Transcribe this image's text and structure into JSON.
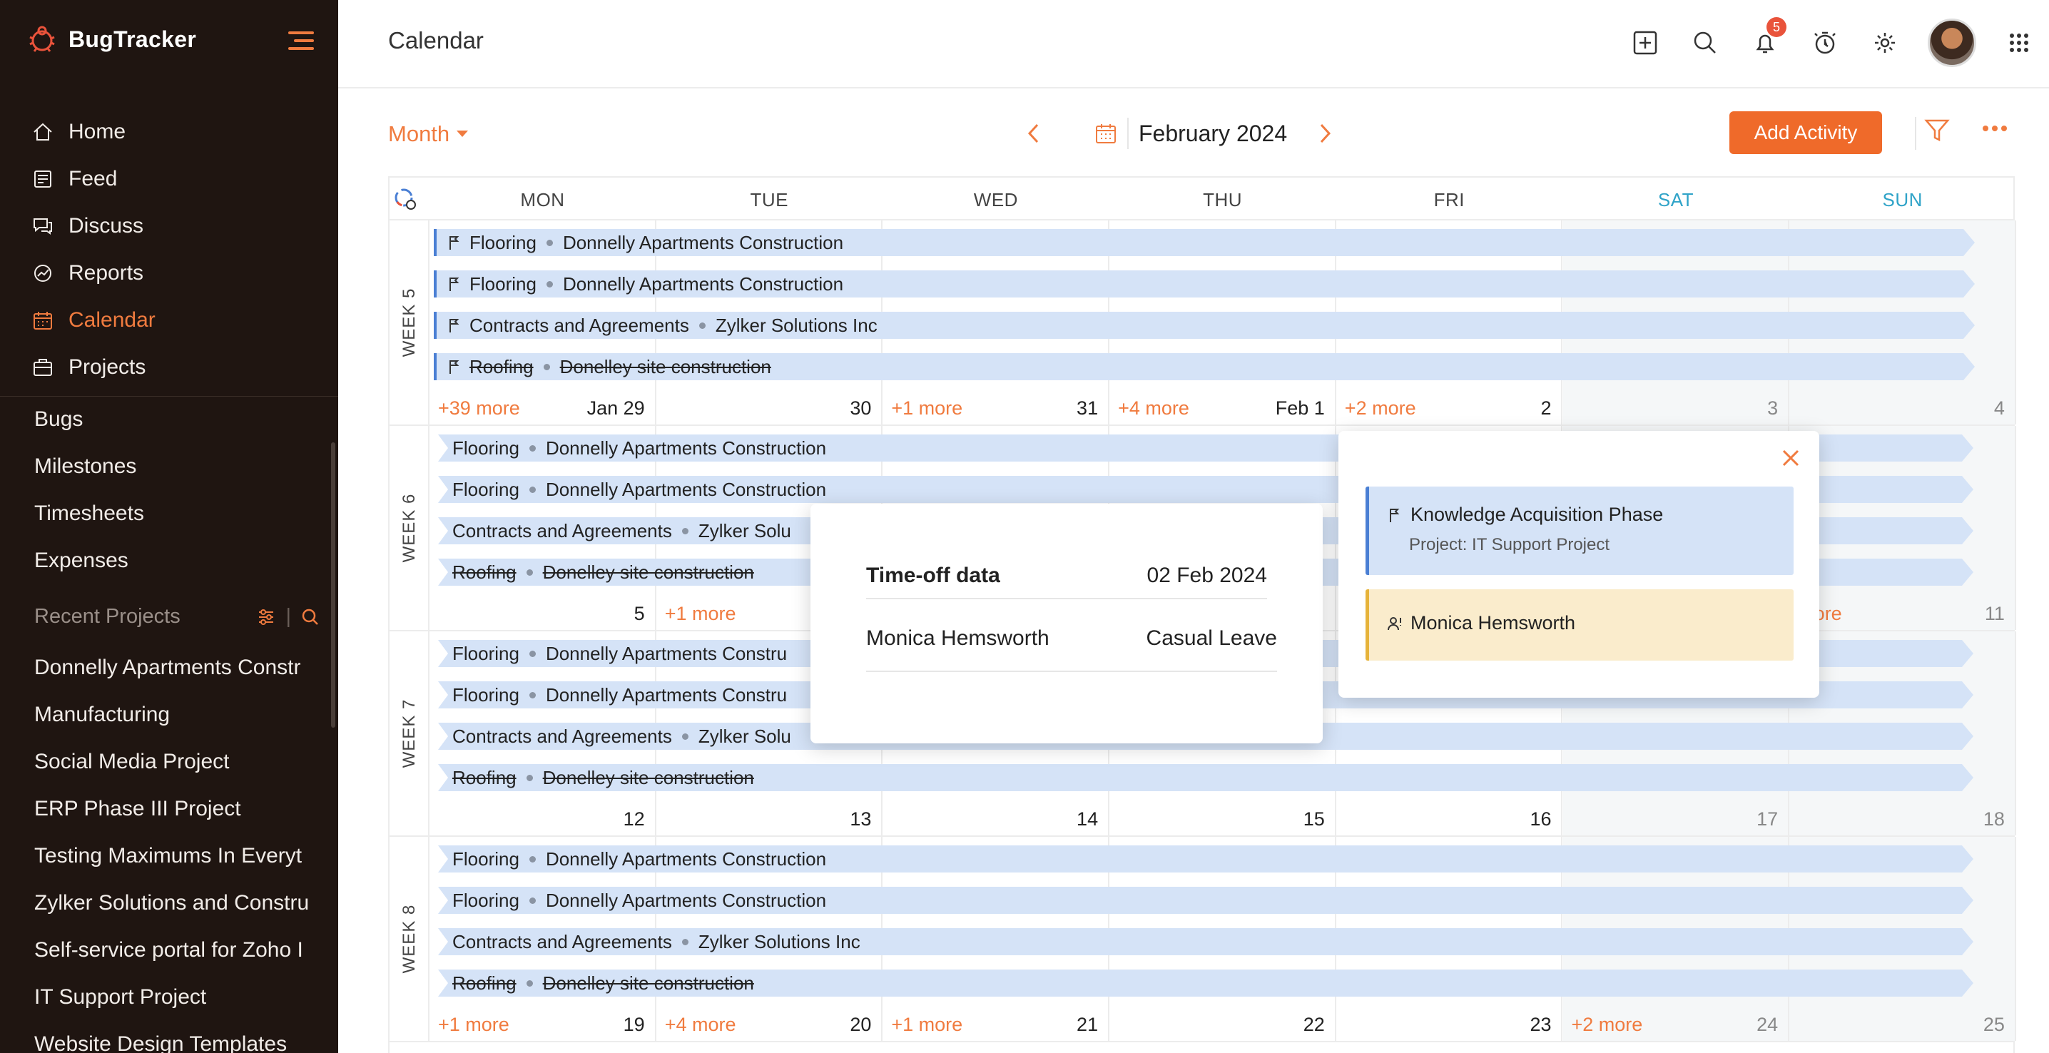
{
  "app": {
    "name": "BugTracker"
  },
  "sidebar": {
    "nav": [
      {
        "label": "Home",
        "icon": "home-icon"
      },
      {
        "label": "Feed",
        "icon": "feed-icon"
      },
      {
        "label": "Discuss",
        "icon": "discuss-icon"
      },
      {
        "label": "Reports",
        "icon": "reports-icon"
      },
      {
        "label": "Calendar",
        "icon": "calendar-icon",
        "active": true
      },
      {
        "label": "Projects",
        "icon": "projects-icon"
      }
    ],
    "sub_nav": [
      "Bugs",
      "Milestones",
      "Timesheets",
      "Expenses"
    ],
    "recent_title": "Recent Projects",
    "recent_projects": [
      "Donnelly Apartments Constr",
      "Manufacturing",
      "Social Media Project",
      "ERP Phase III Project",
      "Testing Maximums In Everyt",
      "Zylker Solutions and Constru",
      "Self-service portal for Zoho I",
      "IT Support Project",
      "Website Design Templates"
    ]
  },
  "header": {
    "title": "Calendar",
    "notification_count": "5"
  },
  "toolbar": {
    "view": "Month",
    "month_label": "February 2024",
    "add_button": "Add Activity"
  },
  "calendar": {
    "days": [
      "MON",
      "TUE",
      "WED",
      "THU",
      "FRI",
      "SAT",
      "SUN"
    ],
    "weeks": [
      {
        "label": "WEEK 5",
        "bars": [
          {
            "task": "Flooring",
            "project": "Donnelly Apartments Construction"
          },
          {
            "task": "Flooring",
            "project": "Donnelly Apartments Construction"
          },
          {
            "task": "Contracts and Agreements",
            "project": "Zylker Solutions Inc"
          },
          {
            "task": "Roofing",
            "project": "Donelley site construction",
            "done": true
          }
        ],
        "dates": [
          "Jan 29",
          "30",
          "31",
          "Feb 1",
          "2",
          "3",
          "4"
        ],
        "more": [
          "+39 more",
          "",
          "+1 more",
          "+4 more",
          "+2 more",
          "",
          ""
        ]
      },
      {
        "label": "WEEK 6",
        "bars": [
          {
            "task": "Flooring",
            "project": "Donnelly Apartments Construction"
          },
          {
            "task": "Flooring",
            "project": "Donnelly Apartments Construction"
          },
          {
            "task": "Contracts and Agreements",
            "project": "Zylker Solu"
          },
          {
            "task": "Roofing",
            "project": "Donelley site construction",
            "done": true
          }
        ],
        "dates": [
          "5",
          "",
          "",
          "",
          "",
          "",
          "11"
        ],
        "more": [
          "",
          "+1 more",
          "",
          "",
          "",
          "",
          "more"
        ]
      },
      {
        "label": "WEEK 7",
        "bars": [
          {
            "task": "Flooring",
            "project": "Donnelly Apartments Constru"
          },
          {
            "task": "Flooring",
            "project": "Donnelly Apartments Constru"
          },
          {
            "task": "Contracts and Agreements",
            "project": "Zylker Solu"
          },
          {
            "task": "Roofing",
            "project": "Donelley site construction",
            "done": true
          }
        ],
        "dates": [
          "12",
          "13",
          "14",
          "15",
          "16",
          "17",
          "18"
        ],
        "more": [
          "",
          "",
          "",
          "",
          "",
          "",
          ""
        ]
      },
      {
        "label": "WEEK 8",
        "bars": [
          {
            "task": "Flooring",
            "project": "Donnelly Apartments Construction"
          },
          {
            "task": "Flooring",
            "project": "Donnelly Apartments Construction"
          },
          {
            "task": "Contracts and Agreements",
            "project": "Zylker Solutions Inc"
          },
          {
            "task": "Roofing",
            "project": "Donelley site construction",
            "done": true
          }
        ],
        "dates": [
          "19",
          "20",
          "21",
          "22",
          "23",
          "24",
          "25"
        ],
        "more": [
          "+1 more",
          "+4 more",
          "+1 more",
          "",
          "",
          "+2 more",
          ""
        ]
      }
    ]
  },
  "timeoff_popup": {
    "title": "Time-off data",
    "date": "02 Feb 2024",
    "person": "Monica Hemsworth",
    "type": "Casual Leave"
  },
  "day_popup": {
    "milestone": "Knowledge Acquisition Phase",
    "project": "Project: IT Support Project",
    "person": "Monica Hemsworth"
  }
}
